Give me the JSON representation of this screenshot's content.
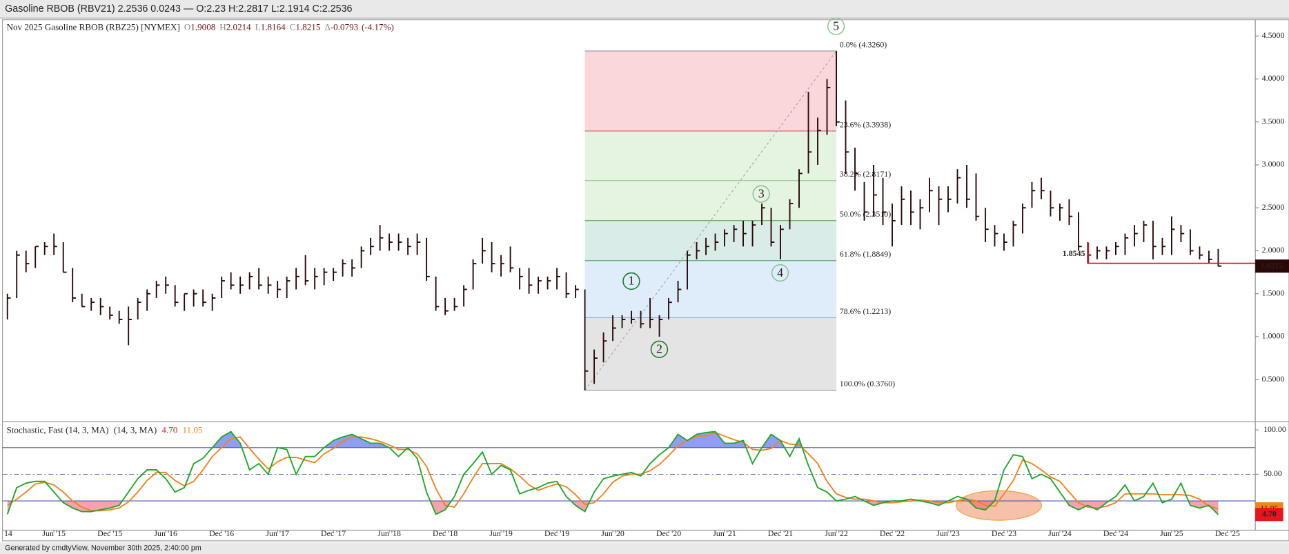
{
  "header": "Gasoline RBOB (RBV21) 2.2536 0.0243 — O:2.23 H:2.2817 L:2.1914 C:2.2536",
  "footer": "Generated by cmdtyView, November 30th 2025, 2:40:00 pm",
  "chart_data": [
    {
      "type": "ohlc",
      "title": "Nov 2025 Gasoline RBOB (RBZ25) [NYMEX]",
      "stats": [
        {
          "key": "O",
          "value": 1.9008
        },
        {
          "key": "H",
          "value": 2.0214
        },
        {
          "key": "L",
          "value": 1.8164
        },
        {
          "key": "C",
          "value": 1.8215
        },
        {
          "key": "Δ",
          "value": -0.0793
        }
      ],
      "change_pct": {
        "value": -4.17,
        "label": "(-4.17%)"
      },
      "color": "#2a0a0a",
      "x": [
        "2015-01",
        "2015-02",
        "2015-03",
        "2015-04",
        "2015-05",
        "2015-06",
        "2015-07",
        "2015-08",
        "2015-09",
        "2015-10",
        "2015-11",
        "2015-12",
        "2016-01",
        "2016-02",
        "2016-03",
        "2016-04",
        "2016-05",
        "2016-06",
        "2016-07",
        "2016-08",
        "2016-09",
        "2016-10",
        "2016-11",
        "2016-12",
        "2017-01",
        "2017-02",
        "2017-03",
        "2017-04",
        "2017-05",
        "2017-06",
        "2017-07",
        "2017-08",
        "2017-09",
        "2017-10",
        "2017-11",
        "2017-12",
        "2018-01",
        "2018-02",
        "2018-03",
        "2018-04",
        "2018-05",
        "2018-06",
        "2018-07",
        "2018-08",
        "2018-09",
        "2018-10",
        "2018-11",
        "2018-12",
        "2019-01",
        "2019-02",
        "2019-03",
        "2019-04",
        "2019-05",
        "2019-06",
        "2019-07",
        "2019-08",
        "2019-09",
        "2019-10",
        "2019-11",
        "2019-12",
        "2020-01",
        "2020-02",
        "2020-03",
        "2020-04",
        "2020-05",
        "2020-06",
        "2020-07",
        "2020-08",
        "2020-09",
        "2020-10",
        "2020-11",
        "2020-12",
        "2021-01",
        "2021-02",
        "2021-03",
        "2021-04",
        "2021-05",
        "2021-06",
        "2021-07",
        "2021-08",
        "2021-09",
        "2021-10",
        "2021-11",
        "2021-12",
        "2022-01",
        "2022-02",
        "2022-03",
        "2022-04",
        "2022-05",
        "2022-06",
        "2022-07",
        "2022-08",
        "2022-09",
        "2022-10",
        "2022-11",
        "2022-12",
        "2023-01",
        "2023-02",
        "2023-03",
        "2023-04",
        "2023-05",
        "2023-06",
        "2023-07",
        "2023-08",
        "2023-09",
        "2023-10",
        "2023-11",
        "2023-12",
        "2024-01",
        "2024-02",
        "2024-03",
        "2024-04",
        "2024-05",
        "2024-06",
        "2024-07",
        "2024-08",
        "2024-09",
        "2024-10",
        "2024-11",
        "2024-12",
        "2025-01",
        "2025-02",
        "2025-03",
        "2025-04",
        "2025-05",
        "2025-06",
        "2025-07",
        "2025-08",
        "2025-09",
        "2025-10",
        "2025-11"
      ],
      "high": [
        1.5,
        2.0,
        2.0,
        2.05,
        2.1,
        2.2,
        2.1,
        1.8,
        1.5,
        1.45,
        1.45,
        1.35,
        1.3,
        1.35,
        1.45,
        1.55,
        1.65,
        1.7,
        1.6,
        1.5,
        1.55,
        1.55,
        1.5,
        1.7,
        1.75,
        1.7,
        1.75,
        1.8,
        1.7,
        1.65,
        1.7,
        1.8,
        1.95,
        1.8,
        1.8,
        1.8,
        1.9,
        1.9,
        2.05,
        2.15,
        2.3,
        2.2,
        2.2,
        2.15,
        2.2,
        2.15,
        1.7,
        1.45,
        1.45,
        1.6,
        1.9,
        2.15,
        2.1,
        1.95,
        2.05,
        1.8,
        1.8,
        1.7,
        1.7,
        1.8,
        1.75,
        1.6,
        1.55,
        0.85,
        1.05,
        1.25,
        1.25,
        1.3,
        1.3,
        1.45,
        1.25,
        1.45,
        1.65,
        2.0,
        2.1,
        2.15,
        2.2,
        2.25,
        2.3,
        2.35,
        2.35,
        2.55,
        2.5,
        2.3,
        2.6,
        2.95,
        3.85,
        3.55,
        4.0,
        4.326,
        3.75,
        3.2,
        2.8,
        3.0,
        2.85,
        2.55,
        2.75,
        2.7,
        2.6,
        2.85,
        2.75,
        2.75,
        2.95,
        3.0,
        2.9,
        2.5,
        2.3,
        2.2,
        2.35,
        2.55,
        2.8,
        2.85,
        2.7,
        2.55,
        2.6,
        2.45,
        2.1,
        2.05,
        2.05,
        2.1,
        2.2,
        2.3,
        2.35,
        2.35,
        2.15,
        2.4,
        2.3,
        2.25,
        2.05,
        2.0,
        2.0214
      ],
      "low": [
        1.2,
        1.45,
        1.75,
        1.8,
        1.95,
        1.95,
        1.75,
        1.4,
        1.35,
        1.3,
        1.25,
        1.2,
        1.15,
        0.9,
        1.2,
        1.3,
        1.45,
        1.5,
        1.35,
        1.3,
        1.35,
        1.35,
        1.3,
        1.45,
        1.55,
        1.5,
        1.55,
        1.55,
        1.5,
        1.45,
        1.45,
        1.55,
        1.6,
        1.55,
        1.6,
        1.65,
        1.7,
        1.7,
        1.8,
        1.95,
        2.0,
        2.0,
        2.0,
        1.95,
        1.95,
        1.65,
        1.3,
        1.25,
        1.3,
        1.35,
        1.55,
        1.85,
        1.75,
        1.7,
        1.75,
        1.55,
        1.5,
        1.5,
        1.55,
        1.55,
        1.45,
        1.45,
        0.376,
        0.45,
        0.7,
        0.95,
        1.1,
        1.15,
        1.1,
        1.1,
        1.0,
        1.2,
        1.4,
        1.55,
        1.9,
        1.95,
        2.0,
        2.05,
        2.1,
        2.05,
        2.05,
        2.3,
        2.05,
        1.9,
        2.25,
        2.5,
        2.9,
        3.0,
        3.35,
        3.45,
        2.9,
        2.7,
        2.35,
        2.4,
        2.3,
        2.05,
        2.3,
        2.3,
        2.25,
        2.45,
        2.3,
        2.45,
        2.55,
        2.5,
        2.35,
        2.1,
        2.05,
        2.0,
        2.05,
        2.2,
        2.5,
        2.6,
        2.4,
        2.35,
        2.3,
        2.0,
        1.85,
        1.9,
        1.9,
        1.95,
        1.95,
        2.05,
        2.1,
        1.9,
        1.95,
        1.95,
        2.1,
        1.95,
        1.9,
        1.85,
        1.8164
      ],
      "close": [
        1.45,
        1.95,
        1.85,
        2.05,
        2.05,
        2.05,
        1.75,
        1.45,
        1.35,
        1.4,
        1.35,
        1.25,
        1.2,
        1.2,
        1.4,
        1.5,
        1.6,
        1.6,
        1.4,
        1.5,
        1.5,
        1.4,
        1.45,
        1.65,
        1.6,
        1.6,
        1.7,
        1.6,
        1.6,
        1.55,
        1.65,
        1.7,
        1.65,
        1.7,
        1.75,
        1.75,
        1.85,
        1.8,
        2.0,
        2.05,
        2.15,
        2.1,
        2.1,
        2.05,
        2.1,
        1.7,
        1.35,
        1.3,
        1.35,
        1.55,
        1.85,
        2.0,
        1.85,
        1.85,
        1.8,
        1.7,
        1.6,
        1.65,
        1.65,
        1.7,
        1.5,
        1.55,
        0.6,
        0.75,
        0.95,
        1.1,
        1.2,
        1.2,
        1.15,
        1.2,
        1.2,
        1.4,
        1.55,
        1.95,
        2.0,
        2.05,
        2.1,
        2.2,
        2.25,
        2.2,
        2.3,
        2.5,
        2.1,
        2.25,
        2.55,
        2.9,
        3.15,
        3.4,
        3.9,
        3.5,
        3.15,
        2.9,
        2.45,
        2.65,
        2.45,
        2.35,
        2.6,
        2.45,
        2.5,
        2.7,
        2.6,
        2.6,
        2.85,
        2.6,
        2.4,
        2.25,
        2.2,
        2.1,
        2.3,
        2.5,
        2.7,
        2.7,
        2.5,
        2.5,
        2.4,
        2.05,
        1.95,
        2.0,
        2.0,
        2.05,
        2.15,
        2.2,
        2.3,
        2.05,
        2.05,
        2.25,
        2.2,
        2.0,
        1.95,
        1.9,
        1.8215
      ],
      "ylim": [
        0.02,
        4.68
      ],
      "yticks": [
        {
          "value": 0.5,
          "label": "0.5000"
        },
        {
          "value": 1.0,
          "label": "1.0000"
        },
        {
          "value": 1.5,
          "label": "1.5000"
        },
        {
          "value": 2.0,
          "label": "2.0000"
        },
        {
          "value": 2.5,
          "label": "2.5000"
        },
        {
          "value": 3.0,
          "label": "3.0000"
        },
        {
          "value": 3.5,
          "label": "3.5000"
        },
        {
          "value": 4.0,
          "label": "4.0000"
        },
        {
          "value": 4.5,
          "label": "4.5000"
        }
      ],
      "fib": [
        {
          "value": 4.326,
          "label": "0.0% (4.3260)",
          "color": "#888888"
        },
        {
          "value": 3.3938,
          "label": "23.6% (3.3938)",
          "color": "#d03050"
        },
        {
          "value": 2.8171,
          "label": "38.2% (2.8171)",
          "color": "#8cc080"
        },
        {
          "value": 2.351,
          "label": "50.0% (2.3510)",
          "color": "#4a9a40"
        },
        {
          "value": 1.8849,
          "label": "61.8% (1.8849)",
          "color": "#2e8a46"
        },
        {
          "value": 1.2213,
          "label": "78.6% (1.2213)",
          "color": "#7aa8d8"
        },
        {
          "value": 0.376,
          "label": "100.0% (0.3760)",
          "color": "#888888"
        }
      ],
      "waves": [
        "1",
        "2",
        "3",
        "4",
        "5"
      ],
      "support": 1.8545,
      "support_color": "#d01828"
    },
    {
      "type": "stochastic",
      "title": "Stochastic, Fast (14, 3, MA)",
      "params": "(14, 3, MA)",
      "series": [
        {
          "color": "#1fa82a",
          "last": {
            "value": 4.7,
            "label": "4.70"
          },
          "values": [
            5,
            35,
            40,
            42,
            42,
            30,
            18,
            12,
            8,
            8,
            10,
            12,
            15,
            30,
            45,
            55,
            55,
            45,
            30,
            35,
            62,
            68,
            80,
            92,
            98,
            85,
            55,
            62,
            50,
            80,
            78,
            50,
            70,
            70,
            80,
            88,
            92,
            95,
            90,
            85,
            85,
            80,
            70,
            80,
            68,
            30,
            5,
            10,
            25,
            50,
            62,
            75,
            50,
            60,
            55,
            28,
            32,
            35,
            40,
            42,
            25,
            15,
            8,
            30,
            45,
            48,
            50,
            52,
            48,
            62,
            72,
            80,
            95,
            88,
            95,
            97,
            98,
            85,
            85,
            88,
            62,
            80,
            95,
            88,
            70,
            90,
            60,
            35,
            30,
            20,
            22,
            25,
            20,
            15,
            18,
            20,
            20,
            22,
            20,
            18,
            15,
            20,
            25,
            22,
            12,
            10,
            20,
            55,
            72,
            70,
            45,
            50,
            45,
            30,
            15,
            10,
            15,
            10,
            18,
            25,
            38,
            20,
            25,
            40,
            18,
            22,
            40,
            15,
            12,
            15,
            4.7
          ]
        },
        {
          "color": "#f0841e",
          "last": 11.05,
          "values": [
            15,
            22,
            30,
            39,
            41,
            38,
            30,
            20,
            13,
            9,
            9,
            10,
            12,
            19,
            30,
            43,
            52,
            52,
            43,
            37,
            42,
            55,
            70,
            80,
            90,
            92,
            79,
            67,
            56,
            64,
            69,
            69,
            66,
            63,
            73,
            79,
            87,
            92,
            92,
            90,
            87,
            83,
            78,
            78,
            73,
            59,
            34,
            15,
            13,
            28,
            46,
            62,
            62,
            62,
            56,
            48,
            38,
            32,
            36,
            39,
            36,
            27,
            16,
            18,
            28,
            41,
            48,
            50,
            50,
            54,
            61,
            71,
            82,
            88,
            93,
            93,
            97,
            93,
            89,
            86,
            78,
            77,
            79,
            88,
            84,
            83,
            73,
            62,
            42,
            28,
            24,
            22,
            22,
            20,
            18,
            18,
            19,
            20,
            21,
            20,
            18,
            18,
            20,
            22,
            20,
            15,
            14,
            28,
            43,
            66,
            62,
            55,
            47,
            42,
            30,
            18,
            13,
            12,
            14,
            18,
            28,
            28,
            28,
            28,
            27,
            27,
            27,
            26,
            22,
            14,
            11.05
          ]
        }
      ],
      "ylim": [
        -12.9,
        107.4
      ],
      "yticks": [
        {
          "value": 100,
          "label": "100.00"
        },
        {
          "value": 50,
          "label": "50.00"
        }
      ],
      "levels": [
        80,
        20
      ],
      "midline": 50,
      "xticks": [
        {
          "value": "2014-12",
          "label": "14"
        },
        {
          "value": "2015-06",
          "label": "Jun '15"
        },
        {
          "value": "2015-12",
          "label": "Dec '15"
        },
        {
          "value": "2016-06",
          "label": "Jun '16"
        },
        {
          "value": "2016-12",
          "label": "Dec '16"
        },
        {
          "value": "2017-06",
          "label": "Jun '17"
        },
        {
          "value": "2017-12",
          "label": "Dec '17"
        },
        {
          "value": "2018-06",
          "label": "Jun '18"
        },
        {
          "value": "2018-12",
          "label": "Dec '18"
        },
        {
          "value": "2019-06",
          "label": "Jun '19"
        },
        {
          "value": "2019-12",
          "label": "Dec '19"
        },
        {
          "value": "2020-06",
          "label": "Jun '20"
        },
        {
          "value": "2020-12",
          "label": "Dec '20"
        },
        {
          "value": "2021-06",
          "label": "Jun '21"
        },
        {
          "value": "2021-12",
          "label": "Dec '21"
        },
        {
          "value": "2022-06",
          "label": "Jun '22"
        },
        {
          "value": "2022-12",
          "label": "Dec '22"
        },
        {
          "value": "2023-06",
          "label": "Jun '23"
        },
        {
          "value": "2023-12",
          "label": "Dec '23"
        },
        {
          "value": "2024-06",
          "label": "Jun '24"
        },
        {
          "value": "2024-12",
          "label": "Dec '24"
        },
        {
          "value": "2025-06",
          "label": "Jun '25"
        },
        {
          "value": "2025-12",
          "label": "Dec '25"
        }
      ]
    }
  ]
}
